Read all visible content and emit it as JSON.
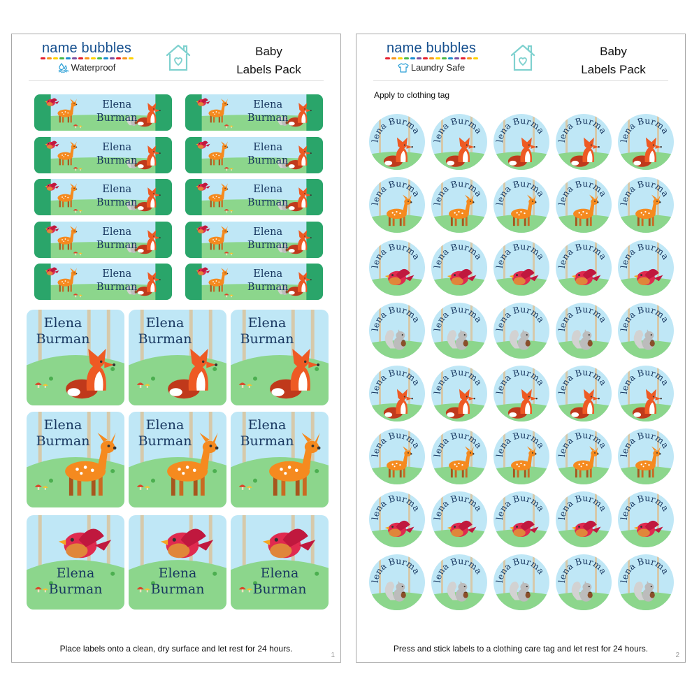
{
  "sheets": [
    {
      "brand": "name bubbles",
      "subtitle": "Waterproof",
      "subtitle_icon": "water-drops-icon",
      "title_line1": "Baby",
      "title_line2": "Labels Pack",
      "footer": "Place labels onto a clean, dry surface and let rest for 24 hours.",
      "page_number": "1"
    },
    {
      "brand": "name bubbles",
      "subtitle": "Laundry Safe",
      "subtitle_icon": "shirt-icon",
      "title_line1": "Baby",
      "title_line2": "Labels Pack",
      "instruction": "Apply to clothing tag",
      "footer": "Press and stick labels to a clothing care tag and let rest for 24 hours.",
      "page_number": "2"
    }
  ],
  "label_name": {
    "first": "Elena",
    "last": "Burman",
    "full": "Elena Burman"
  },
  "label_sets": {
    "rectangle_labels": {
      "columns": 2,
      "rows": 5,
      "art": [
        "fawn",
        "bird",
        "squirrel",
        "fox"
      ]
    },
    "large_labels": {
      "columns": 3,
      "rows": 3,
      "row_art": [
        "fox",
        "fawn",
        "bird"
      ]
    },
    "round_labels": {
      "columns": 5,
      "rows": 8,
      "row_art": [
        "fox",
        "fawn",
        "bird",
        "squirrel",
        "fox",
        "fawn",
        "bird",
        "squirrel"
      ]
    }
  },
  "colors": {
    "brand_text": "#16508f",
    "brand_dots": [
      "#e5202f",
      "#f7941d",
      "#ffd200",
      "#49b848",
      "#1d8fd0",
      "#7b4fa0",
      "#e5202f",
      "#f7941d",
      "#ffd200",
      "#49b848",
      "#1d8fd0",
      "#7b4fa0",
      "#e5202f",
      "#f7941d",
      "#ffd200"
    ],
    "house_icon": "#7fd1cf",
    "name_text": "#17365f",
    "sky": "#bfe7f6",
    "grass": "#8cd68c",
    "tree_green": "#2aa56a",
    "fox_orange": "#ee5a24",
    "fawn_orange": "#f58a1f",
    "bird_red": "#e02a4f",
    "squirrel_gray": "#bcbcbc"
  }
}
